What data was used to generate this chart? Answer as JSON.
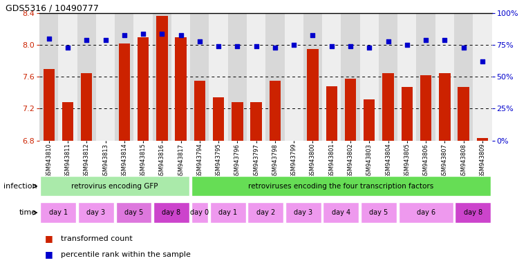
{
  "title": "GDS5316 / 10490777",
  "samples": [
    "GSM943810",
    "GSM943811",
    "GSM943812",
    "GSM943813",
    "GSM943814",
    "GSM943815",
    "GSM943816",
    "GSM943817",
    "GSM943794",
    "GSM943795",
    "GSM943796",
    "GSM943797",
    "GSM943798",
    "GSM943799",
    "GSM943800",
    "GSM943801",
    "GSM943802",
    "GSM943803",
    "GSM943804",
    "GSM943805",
    "GSM943806",
    "GSM943807",
    "GSM943808",
    "GSM943809"
  ],
  "bar_values": [
    7.7,
    7.28,
    7.65,
    6.8,
    8.02,
    8.1,
    8.37,
    8.1,
    7.55,
    7.34,
    7.28,
    7.28,
    7.55,
    6.8,
    7.95,
    7.48,
    7.58,
    7.32,
    7.65,
    7.47,
    7.62,
    7.65,
    7.47,
    6.83
  ],
  "percentile_values": [
    80,
    73,
    79,
    79,
    83,
    84,
    84,
    83,
    78,
    74,
    74,
    74,
    73,
    75,
    83,
    74,
    74,
    73,
    78,
    75,
    79,
    79,
    73,
    62
  ],
  "ylim_left": [
    6.8,
    8.4
  ],
  "ylim_right": [
    0,
    100
  ],
  "yticks_left": [
    6.8,
    7.2,
    7.6,
    8.0,
    8.4
  ],
  "yticks_right": [
    0,
    25,
    50,
    75,
    100
  ],
  "bar_color": "#cc2200",
  "dot_color": "#0000cc",
  "grid_vals": [
    7.2,
    7.6,
    8.0
  ],
  "infection_label": "infection",
  "time_label": "time",
  "infection_groups": [
    {
      "label": "retrovirus encoding GFP",
      "start": 0,
      "end": 8,
      "color": "#aaeaaa"
    },
    {
      "label": "retroviruses encoding the four transcription factors",
      "start": 8,
      "end": 24,
      "color": "#66dd55"
    }
  ],
  "time_groups": [
    {
      "label": "day 1",
      "start": 0,
      "end": 2,
      "color": "#ee99ee"
    },
    {
      "label": "day 3",
      "start": 2,
      "end": 4,
      "color": "#ee99ee"
    },
    {
      "label": "day 5",
      "start": 4,
      "end": 6,
      "color": "#dd77dd"
    },
    {
      "label": "day 8",
      "start": 6,
      "end": 8,
      "color": "#cc44cc"
    },
    {
      "label": "day 0",
      "start": 8,
      "end": 9,
      "color": "#ee99ee"
    },
    {
      "label": "day 1",
      "start": 9,
      "end": 11,
      "color": "#ee99ee"
    },
    {
      "label": "day 2",
      "start": 11,
      "end": 13,
      "color": "#ee99ee"
    },
    {
      "label": "day 3",
      "start": 13,
      "end": 15,
      "color": "#ee99ee"
    },
    {
      "label": "day 4",
      "start": 15,
      "end": 17,
      "color": "#ee99ee"
    },
    {
      "label": "day 5",
      "start": 17,
      "end": 19,
      "color": "#ee99ee"
    },
    {
      "label": "day 6",
      "start": 19,
      "end": 22,
      "color": "#ee99ee"
    },
    {
      "label": "day 8",
      "start": 22,
      "end": 24,
      "color": "#cc44cc"
    }
  ],
  "legend_items": [
    {
      "color": "#cc2200",
      "label": "transformed count"
    },
    {
      "color": "#0000cc",
      "label": "percentile rank within the sample"
    }
  ],
  "col_bg_even": "#d8d8d8",
  "col_bg_odd": "#eeeeee"
}
